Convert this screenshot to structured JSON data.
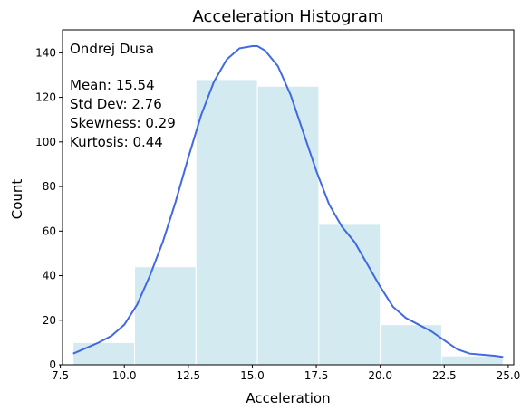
{
  "chart_data": {
    "type": "bar",
    "title": "Acceleration Histogram",
    "xlabel": "Acceleration",
    "ylabel": "Count",
    "xlim": [
      7.585,
      25.215
    ],
    "ylim": [
      0,
      150.3
    ],
    "grid": false,
    "xticks": [
      7.5,
      10.0,
      12.5,
      15.0,
      17.5,
      20.0,
      22.5,
      25.0
    ],
    "xtick_labels": [
      "7.5",
      "10.0",
      "12.5",
      "15.0",
      "17.5",
      "20.0",
      "22.5",
      "25.0"
    ],
    "yticks": [
      0,
      20,
      40,
      60,
      80,
      100,
      120,
      140
    ],
    "ytick_labels": [
      "0",
      "20",
      "40",
      "60",
      "80",
      "100",
      "120",
      "140"
    ],
    "bins": [
      {
        "x0": 8.0,
        "x1": 10.4,
        "count": 10
      },
      {
        "x0": 10.4,
        "x1": 12.8,
        "count": 44
      },
      {
        "x0": 12.8,
        "x1": 15.2,
        "count": 128
      },
      {
        "x0": 15.2,
        "x1": 17.6,
        "count": 125
      },
      {
        "x0": 17.6,
        "x1": 20.0,
        "count": 63
      },
      {
        "x0": 20.0,
        "x1": 22.4,
        "count": 18
      },
      {
        "x0": 22.4,
        "x1": 24.8,
        "count": 4
      }
    ],
    "kde": {
      "x": [
        8.0,
        8.5,
        9.0,
        9.5,
        10.0,
        10.5,
        11.0,
        11.5,
        12.0,
        12.5,
        13.0,
        13.5,
        14.0,
        14.5,
        15.0,
        15.2,
        15.5,
        16.0,
        16.5,
        17.0,
        17.5,
        18.0,
        18.5,
        19.0,
        19.5,
        20.0,
        20.5,
        21.0,
        21.5,
        22.0,
        22.5,
        23.0,
        23.5,
        24.0,
        24.5,
        24.8
      ],
      "y": [
        5,
        7.5,
        10,
        13,
        18,
        27,
        40,
        55,
        73,
        93,
        112,
        127,
        137,
        142,
        143,
        143,
        141,
        134,
        121,
        104,
        87,
        72,
        62,
        55,
        45,
        35,
        26,
        21,
        18,
        15,
        11,
        7,
        5,
        4.5,
        4,
        3.5
      ]
    },
    "colors": {
      "bar_fill": "#d3eaf1",
      "bar_edge": "#ffffff",
      "kde_line": "#4169e1"
    },
    "annotation": {
      "name": "Ondrej Dusa",
      "stats": [
        "Mean: 15.54",
        "Std Dev: 2.76",
        "Skewness: 0.29",
        "Kurtosis: 0.44"
      ]
    }
  }
}
